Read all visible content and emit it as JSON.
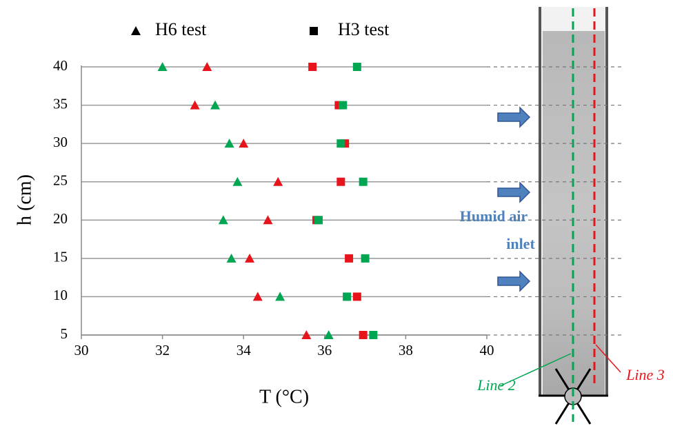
{
  "chart_data": {
    "type": "scatter",
    "x_label": "T (°C)",
    "y_label": "h (cm)",
    "xlim": [
      30,
      40
    ],
    "xticks": [
      30,
      32,
      34,
      36,
      38,
      40
    ],
    "ylim": [
      5,
      40
    ],
    "yticks": [
      5,
      10,
      15,
      20,
      25,
      30,
      35,
      40
    ],
    "grid": true,
    "legend": [
      {
        "name": "H6 test",
        "marker": "triangle",
        "color": "#000000"
      },
      {
        "name": "H3 test",
        "marker": "square",
        "color": "#000000"
      }
    ],
    "y": [
      40,
      35,
      30,
      25,
      20,
      15,
      10,
      5
    ],
    "series": [
      {
        "marker": "triangle",
        "color": "#00a651",
        "x": [
          32.0,
          33.3,
          33.65,
          33.85,
          33.5,
          33.7,
          34.9,
          36.1
        ]
      },
      {
        "marker": "triangle",
        "color": "#e8141b",
        "x": [
          33.1,
          32.8,
          34.0,
          34.85,
          34.6,
          34.15,
          34.35,
          35.55
        ]
      },
      {
        "marker": "square",
        "color": "#e8141b",
        "x": [
          35.7,
          36.35,
          36.5,
          36.4,
          35.8,
          36.6,
          36.8,
          36.95
        ]
      },
      {
        "marker": "square",
        "color": "#00a651",
        "x": [
          36.8,
          36.45,
          36.4,
          36.95,
          35.85,
          37.0,
          36.55,
          37.2
        ]
      }
    ],
    "annotations": [
      {
        "text": "Humid air",
        "color": "#4f81bd"
      },
      {
        "text": "inlet",
        "color": "#4f81bd"
      },
      {
        "text": "Line 2",
        "color": "#00a651"
      },
      {
        "text": "Line 3",
        "color": "#e8141b"
      }
    ]
  }
}
